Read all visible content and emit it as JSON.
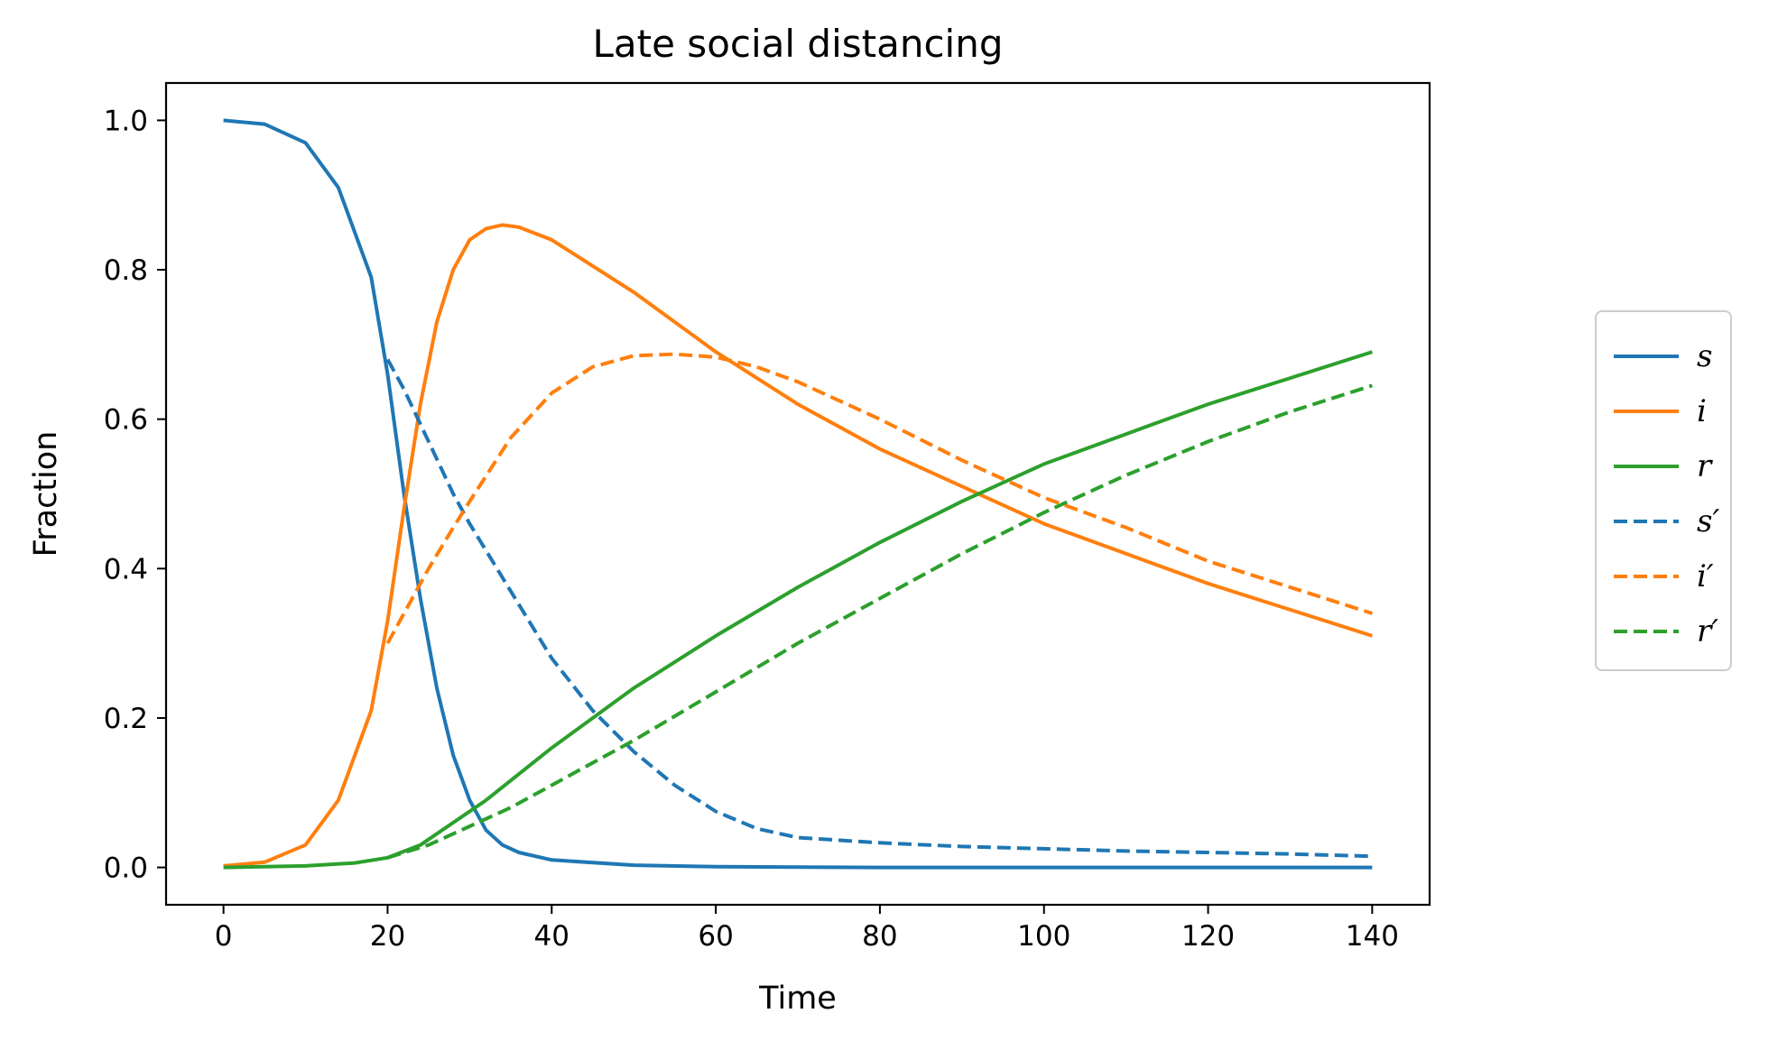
{
  "chart_data": {
    "type": "line",
    "title": "Late social distancing",
    "xlabel": "Time",
    "ylabel": "Fraction",
    "xlim": [
      -7,
      147
    ],
    "ylim": [
      -0.05,
      1.05
    ],
    "xticks": [
      0,
      20,
      40,
      60,
      80,
      100,
      120,
      140
    ],
    "xtick_labels": [
      "0",
      "20",
      "40",
      "60",
      "80",
      "100",
      "120",
      "140"
    ],
    "yticks": [
      0.0,
      0.2,
      0.4,
      0.6,
      0.8,
      1.0
    ],
    "ytick_labels": [
      "0.0",
      "0.2",
      "0.4",
      "0.6",
      "0.8",
      "1.0"
    ],
    "grid": false,
    "legend_position": "outside-right",
    "series": [
      {
        "name": "s",
        "color": "#1f77b4",
        "dash": "solid",
        "x": [
          0,
          5,
          10,
          14,
          18,
          20,
          22,
          24,
          26,
          28,
          30,
          32,
          34,
          36,
          40,
          50,
          60,
          80,
          100,
          120,
          140
        ],
        "y": [
          1.0,
          0.995,
          0.97,
          0.91,
          0.79,
          0.66,
          0.5,
          0.36,
          0.24,
          0.15,
          0.09,
          0.05,
          0.03,
          0.02,
          0.01,
          0.003,
          0.001,
          0.0,
          0.0,
          0.0,
          0.0
        ]
      },
      {
        "name": "i",
        "color": "#ff7f0e",
        "dash": "solid",
        "x": [
          0,
          5,
          10,
          14,
          18,
          20,
          22,
          24,
          26,
          28,
          30,
          32,
          34,
          36,
          40,
          50,
          60,
          70,
          80,
          90,
          100,
          110,
          120,
          130,
          140
        ],
        "y": [
          0.002,
          0.007,
          0.03,
          0.09,
          0.21,
          0.33,
          0.48,
          0.62,
          0.73,
          0.8,
          0.84,
          0.855,
          0.86,
          0.857,
          0.84,
          0.77,
          0.69,
          0.62,
          0.56,
          0.51,
          0.46,
          0.42,
          0.38,
          0.345,
          0.31
        ]
      },
      {
        "name": "r",
        "color": "#2ca02c",
        "dash": "solid",
        "x": [
          0,
          10,
          16,
          20,
          24,
          28,
          32,
          36,
          40,
          50,
          60,
          70,
          80,
          90,
          100,
          110,
          120,
          130,
          140
        ],
        "y": [
          0.0,
          0.002,
          0.006,
          0.013,
          0.03,
          0.06,
          0.09,
          0.125,
          0.16,
          0.24,
          0.31,
          0.375,
          0.435,
          0.49,
          0.54,
          0.58,
          0.62,
          0.655,
          0.69
        ]
      },
      {
        "name": "s′",
        "color": "#1f77b4",
        "dash": "dashed",
        "x": [
          20,
          22,
          25,
          28,
          30,
          35,
          40,
          45,
          50,
          55,
          60,
          65,
          70,
          80,
          90,
          100,
          110,
          120,
          130,
          140
        ],
        "y": [
          0.68,
          0.64,
          0.57,
          0.5,
          0.46,
          0.37,
          0.28,
          0.21,
          0.155,
          0.11,
          0.075,
          0.052,
          0.04,
          0.033,
          0.028,
          0.025,
          0.022,
          0.02,
          0.018,
          0.015
        ]
      },
      {
        "name": "i′",
        "color": "#ff7f0e",
        "dash": "dashed",
        "x": [
          20,
          22,
          25,
          28,
          30,
          35,
          40,
          45,
          50,
          55,
          60,
          65,
          70,
          80,
          90,
          100,
          110,
          120,
          130,
          140
        ],
        "y": [
          0.3,
          0.34,
          0.4,
          0.455,
          0.49,
          0.575,
          0.635,
          0.67,
          0.685,
          0.687,
          0.683,
          0.67,
          0.65,
          0.6,
          0.545,
          0.495,
          0.455,
          0.41,
          0.375,
          0.34
        ]
      },
      {
        "name": "r′",
        "color": "#2ca02c",
        "dash": "dashed",
        "x": [
          20,
          25,
          30,
          35,
          40,
          45,
          50,
          60,
          70,
          80,
          90,
          100,
          110,
          120,
          130,
          140
        ],
        "y": [
          0.013,
          0.03,
          0.055,
          0.08,
          0.11,
          0.14,
          0.17,
          0.235,
          0.3,
          0.36,
          0.42,
          0.475,
          0.525,
          0.57,
          0.61,
          0.645
        ]
      }
    ]
  }
}
